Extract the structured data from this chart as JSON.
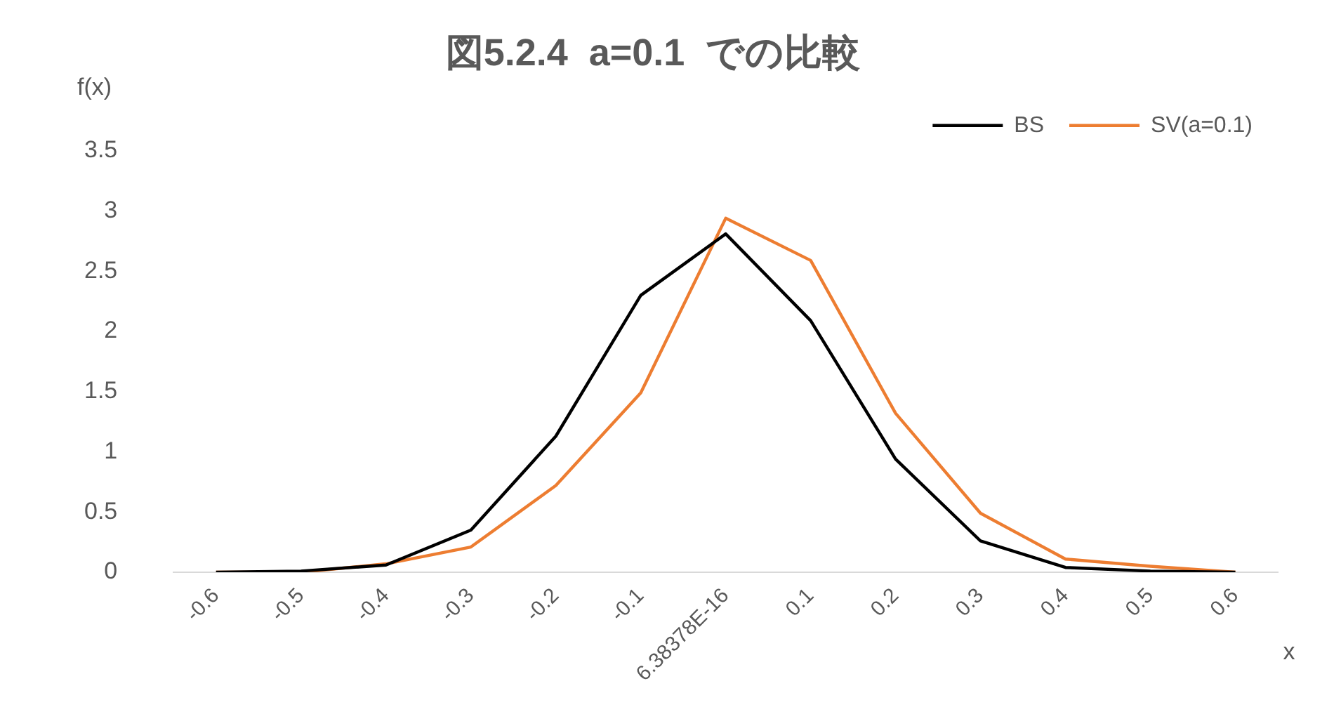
{
  "chart_data": {
    "type": "line",
    "title": "図5.2.4  a=0.1  での比較",
    "xlabel": "x",
    "ylabel": "f(x)",
    "categories": [
      "-0.6",
      "-0.5",
      "-0.4",
      "-0.3",
      "-0.2",
      "-0.1",
      "6.38378E-16",
      "0.1",
      "0.2",
      "0.3",
      "0.4",
      "0.5",
      "0.6"
    ],
    "series": [
      {
        "name": "BS",
        "color": "#000000",
        "values": [
          0,
          0.01,
          0.06,
          0.35,
          1.13,
          2.3,
          2.81,
          2.09,
          0.94,
          0.26,
          0.04,
          0.01,
          0
        ]
      },
      {
        "name": "SV(a=0.1)",
        "color": "#ed7d31",
        "values": [
          0,
          0,
          0.07,
          0.21,
          0.72,
          1.49,
          2.94,
          2.59,
          1.32,
          0.49,
          0.11,
          0.05,
          0
        ]
      }
    ],
    "ylim": [
      0,
      3.5
    ],
    "yticks": [
      0,
      0.5,
      1,
      1.5,
      2,
      2.5,
      3,
      3.5
    ],
    "grid": false,
    "legend": "top right",
    "marker": "none",
    "line_style": "solid"
  }
}
